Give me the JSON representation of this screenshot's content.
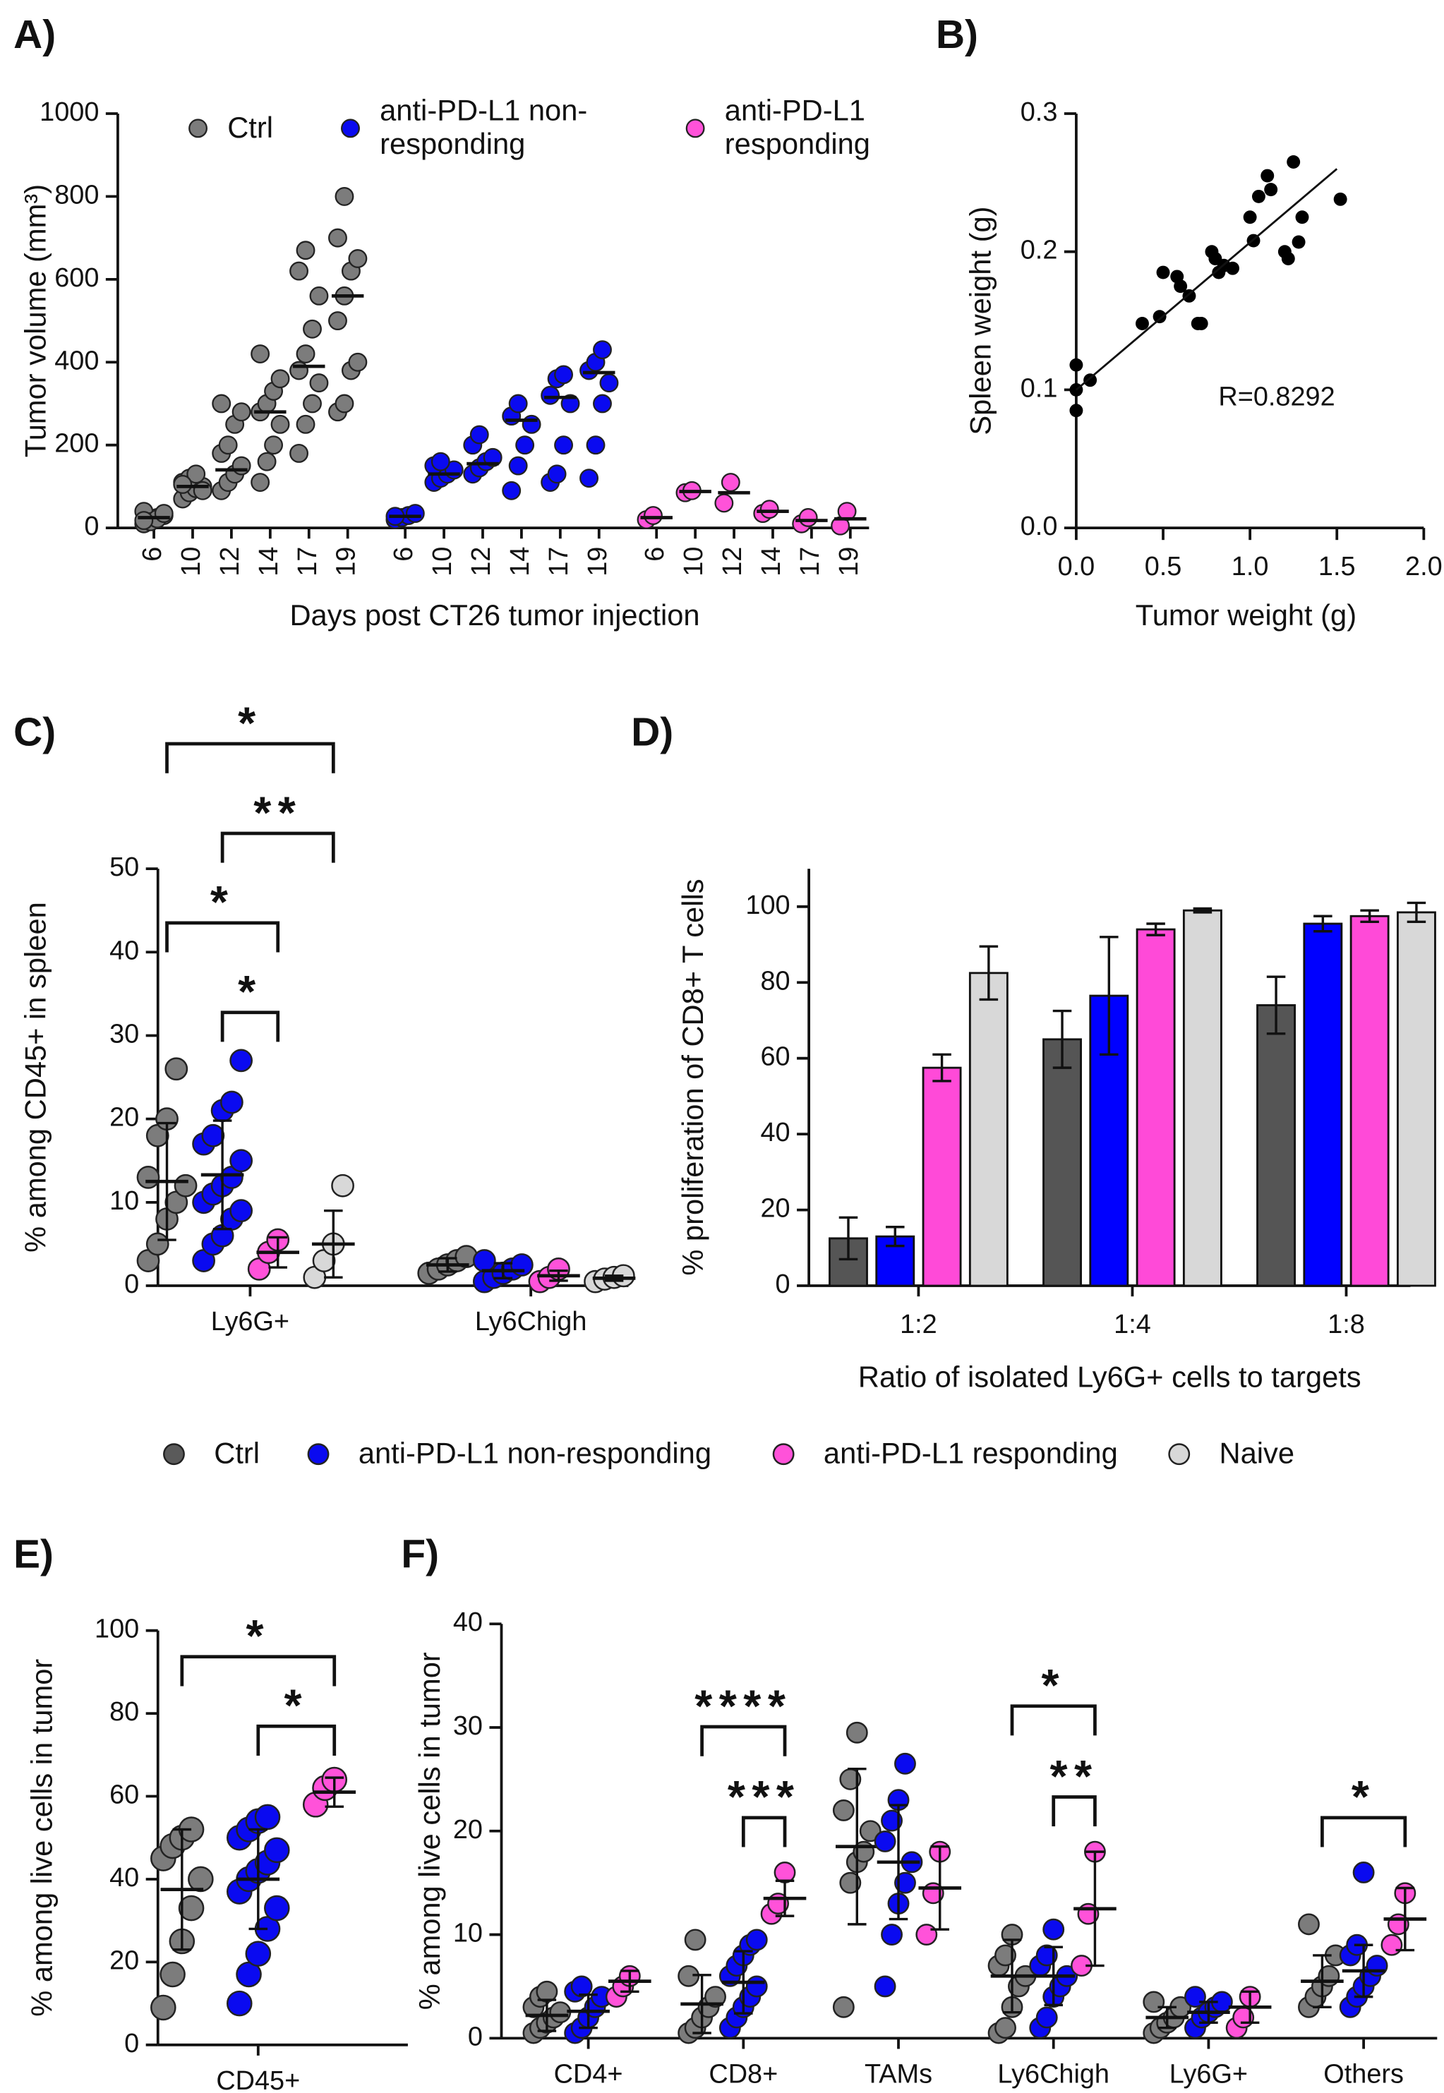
{
  "legend": [
    {
      "name": "Ctrl",
      "color": "#5a5a5a"
    },
    {
      "name": "anti-PD-L1 non-responding",
      "color": "#0a0af0"
    },
    {
      "name": "anti-PD-L1 responding",
      "color": "#ff52d9"
    },
    {
      "name": "Naive",
      "color": "#d8d8d8"
    }
  ],
  "chart_data": [
    {
      "type": "dot",
      "panel": "A)",
      "ylabel": "Tumor volume (mm³)",
      "xlabel": "Days post  CT26 tumor injection",
      "categories": [
        "6",
        "10",
        "12",
        "14",
        "17",
        "19"
      ],
      "ylim": [
        0,
        1000
      ],
      "yticks": [
        0,
        200,
        400,
        600,
        800,
        1000
      ],
      "series": [
        {
          "name": "Ctrl",
          "color": "#7c7c7c",
          "points": [
            [
              10,
              20,
              25,
              30,
              40,
              15,
              22,
              35,
              18
            ],
            [
              70,
              85,
              95,
              100,
              110,
              120,
              130,
              90,
              105
            ],
            [
              90,
              110,
              130,
              150,
              180,
              200,
              250,
              280,
              300
            ],
            [
              110,
              160,
              200,
              250,
              280,
              300,
              330,
              360,
              420
            ],
            [
              180,
              250,
              300,
              350,
              380,
              420,
              480,
              560,
              620,
              670
            ],
            [
              280,
              300,
              380,
              400,
              500,
              560,
              620,
              650,
              700,
              800
            ]
          ],
          "medians": [
            25,
            100,
            140,
            280,
            390,
            560
          ]
        },
        {
          "name": "anti-PD-L1 non-responding",
          "color": "#0a0af0",
          "points": [
            [
              20,
              25,
              30,
              35,
              28
            ],
            [
              110,
              120,
              130,
              140,
              150,
              160
            ],
            [
              130,
              145,
              160,
              170,
              200,
              225
            ],
            [
              90,
              150,
              200,
              250,
              270,
              300
            ],
            [
              110,
              130,
              200,
              300,
              320,
              360,
              370
            ],
            [
              120,
              200,
              300,
              350,
              380,
              400,
              430
            ]
          ],
          "medians": [
            28,
            130,
            155,
            260,
            315,
            375
          ]
        },
        {
          "name": "anti-PD-L1 responding",
          "color": "#ff52d9",
          "points": [
            [
              20,
              30
            ],
            [
              85,
              90
            ],
            [
              60,
              110
            ],
            [
              35,
              45
            ],
            [
              10,
              25
            ],
            [
              5,
              40
            ]
          ],
          "medians": [
            25,
            88,
            85,
            40,
            18,
            22
          ]
        }
      ]
    },
    {
      "type": "scatter",
      "panel": "B)",
      "xlabel": "Tumor weight (g)",
      "ylabel": "Spleen weight (g)",
      "annotation": "R=0.8292",
      "xlim": [
        0,
        2
      ],
      "xticks": [
        {
          "value": 0,
          "label": "0.0"
        },
        {
          "value": 0.5,
          "label": "0.5"
        },
        {
          "value": 1,
          "label": "1.0"
        },
        {
          "value": 1.5,
          "label": "1.5"
        },
        {
          "value": 2,
          "label": "2.0"
        }
      ],
      "ylim": [
        0,
        0.3
      ],
      "yticks": [
        {
          "value": 0,
          "label": "0.0"
        },
        0.1,
        0.2,
        0.3
      ],
      "color": "#000000",
      "x": [
        0,
        0,
        0,
        0.08,
        0.38,
        0.48,
        0.5,
        0.58,
        0.6,
        0.65,
        0.7,
        0.72,
        0.78,
        0.8,
        0.82,
        0.85,
        0.9,
        1.0,
        1.02,
        1.05,
        1.1,
        1.12,
        1.2,
        1.22,
        1.25,
        1.28,
        1.3,
        1.52
      ],
      "y": [
        0.085,
        0.1,
        0.118,
        0.107,
        0.148,
        0.153,
        0.185,
        0.182,
        0.175,
        0.168,
        0.148,
        0.148,
        0.2,
        0.195,
        0.185,
        0.19,
        0.188,
        0.225,
        0.208,
        0.24,
        0.255,
        0.245,
        0.2,
        0.195,
        0.265,
        0.207,
        0.225,
        0.238
      ],
      "trend": {
        "x": [
          0,
          1.5
        ],
        "y": [
          0.1,
          0.26
        ]
      }
    },
    {
      "type": "dotsd",
      "panel": "C)",
      "ylabel": "% among CD45+ in spleen",
      "categories": [
        "Ly6G+",
        "Ly6Chigh"
      ],
      "ylim": [
        0,
        50
      ],
      "yticks": [
        0,
        10,
        20,
        30,
        40,
        50
      ],
      "series": [
        {
          "color": "#7c7c7c",
          "points": [
            [
              3,
              5,
              8,
              10,
              12,
              13,
              18,
              20,
              26
            ],
            [
              1.5,
              2,
              2.5,
              3,
              3.5
            ]
          ],
          "means": [
            12.5,
            2.5
          ],
          "sd": [
            7,
            0.8
          ]
        },
        {
          "color": "#0a0af0",
          "points": [
            [
              3,
              5,
              6,
              8,
              9,
              10,
              11,
              12,
              13,
              15,
              17,
              18,
              21,
              22,
              27
            ],
            [
              0.5,
              1,
              1.5,
              2,
              2.5,
              3
            ]
          ],
          "means": [
            13.3,
            1.8
          ],
          "sd": [
            6.5,
            0.9
          ]
        },
        {
          "color": "#ff52d9",
          "points": [
            [
              2,
              4,
              5.5
            ],
            [
              0.5,
              1,
              2
            ]
          ],
          "means": [
            4,
            1.2
          ],
          "sd": [
            1.8,
            0.6
          ]
        },
        {
          "color": "#d8d8d8",
          "points": [
            [
              1,
              3,
              5,
              12
            ],
            [
              0.5,
              0.8,
              1,
              1.2
            ]
          ],
          "means": [
            5,
            0.9
          ],
          "sd": [
            4,
            0.3
          ]
        }
      ],
      "brackets": [
        {
          "category": 0,
          "groups": [
            1,
            2
          ],
          "label": "*"
        },
        {
          "category": 0,
          "groups": [
            0,
            2
          ],
          "label": "*"
        },
        {
          "category": 0,
          "groups": [
            1,
            3
          ],
          "label": "**"
        },
        {
          "category": 0,
          "groups": [
            0,
            3
          ],
          "label": "*"
        }
      ]
    },
    {
      "type": "bar",
      "panel": "D)",
      "ylabel": "% proliferation of CD8+  T cells",
      "xlabel": "Ratio of isolated Ly6G+ cells to targets",
      "categories": [
        "1:2",
        "1:4",
        "1:8"
      ],
      "ylim": [
        0,
        110
      ],
      "yticks": [
        0,
        20,
        40,
        60,
        80,
        100
      ],
      "series": [
        {
          "color": "#555555",
          "values": [
            12.5,
            65,
            74
          ],
          "errors": [
            5.5,
            7.5,
            7.5
          ]
        },
        {
          "color": "#0000ff",
          "values": [
            13,
            76.5,
            95.5
          ],
          "errors": [
            2.5,
            15.5,
            2
          ]
        },
        {
          "color": "#ff4ad8",
          "values": [
            57.5,
            94,
            97.5
          ],
          "errors": [
            3.5,
            1.5,
            1.5
          ]
        },
        {
          "color": "#d8d8d8",
          "values": [
            82.5,
            99,
            98.5
          ],
          "errors": [
            7,
            0.5,
            2.5
          ]
        }
      ]
    },
    {
      "type": "dotsd",
      "panel": "E)",
      "ylabel": "% among live cells in tumor",
      "categories": [
        "CD45+"
      ],
      "ylim": [
        0,
        100
      ],
      "yticks": [
        0,
        20,
        40,
        60,
        80,
        100
      ],
      "series": [
        {
          "color": "#7c7c7c",
          "points": [
            [
              9,
              17,
              25,
              33,
              40,
              45,
              48,
              50,
              52
            ]
          ],
          "means": [
            37.5
          ],
          "sd": [
            14.5
          ]
        },
        {
          "color": "#0a0af0",
          "points": [
            [
              10,
              17,
              22,
              28,
              33,
              37,
              40,
              42,
              44,
              47,
              50,
              52,
              54,
              55
            ]
          ],
          "means": [
            40
          ],
          "sd": [
            12
          ]
        },
        {
          "color": "#ff52d9",
          "points": [
            [
              58,
              62,
              64
            ]
          ],
          "means": [
            61
          ],
          "sd": [
            3.5
          ]
        }
      ],
      "brackets": [
        {
          "category": 0,
          "groups": [
            1,
            2
          ],
          "label": "*"
        },
        {
          "category": 0,
          "groups": [
            0,
            2
          ],
          "label": "*"
        }
      ]
    },
    {
      "type": "dotsd",
      "panel": "F)",
      "ylabel": "% among live cells in tumor",
      "categories": [
        "CD4+",
        "CD8+",
        "TAMs",
        "Ly6Chigh",
        "Ly6G+",
        "Others"
      ],
      "ylim": [
        0,
        40
      ],
      "yticks": [
        0,
        10,
        20,
        30,
        40
      ],
      "series": [
        {
          "color": "#7c7c7c",
          "points": [
            [
              0.5,
              1,
              1.5,
              2,
              2.5,
              3,
              4,
              4.5
            ],
            [
              0.5,
              1,
              2,
              3,
              4,
              6,
              9.5
            ],
            [
              3,
              15,
              17,
              18,
              20,
              22,
              25,
              29.5
            ],
            [
              0.5,
              1,
              3,
              5,
              6,
              7,
              8,
              10
            ],
            [
              0.5,
              1,
              1.5,
              2,
              3,
              3.5
            ],
            [
              3,
              4,
              5,
              6,
              8,
              11
            ]
          ],
          "means": [
            2.2,
            3.3,
            18.5,
            6,
            2,
            5.5
          ],
          "sd": [
            1.5,
            2.8,
            7.5,
            3.5,
            1,
            2.5
          ]
        },
        {
          "color": "#0a0af0",
          "points": [
            [
              0.5,
              1,
              2,
              3,
              4,
              4.5,
              5
            ],
            [
              1,
              2,
              3,
              4,
              5,
              6,
              7,
              8,
              9,
              9.5
            ],
            [
              5,
              10,
              13,
              15,
              17,
              19,
              21,
              23,
              26.5
            ],
            [
              1,
              2,
              4,
              5,
              6,
              7,
              8,
              10.5
            ],
            [
              1,
              2,
              2.5,
              3,
              3.5,
              4
            ],
            [
              3,
              4,
              5,
              6,
              7,
              8,
              9,
              16
            ]
          ],
          "means": [
            2.6,
            5.4,
            17,
            6,
            2.5,
            6.5
          ],
          "sd": [
            1.6,
            3,
            5.5,
            2.8,
            1,
            2.5
          ]
        },
        {
          "color": "#ff52d9",
          "points": [
            [
              4,
              5,
              6
            ],
            [
              12,
              13,
              16
            ],
            [
              10,
              14,
              18
            ],
            [
              7,
              12,
              18
            ],
            [
              1,
              2,
              4
            ],
            [
              9,
              11,
              14
            ]
          ],
          "means": [
            5.5,
            13.5,
            14.5,
            12.5,
            3,
            11.5
          ],
          "sd": [
            1,
            1.7,
            4,
            5.5,
            1.5,
            3
          ]
        }
      ],
      "brackets": [
        {
          "category": 1,
          "groups": [
            1,
            2
          ],
          "label": "***"
        },
        {
          "category": 1,
          "groups": [
            0,
            2
          ],
          "label": "****"
        },
        {
          "category": 3,
          "groups": [
            1,
            2
          ],
          "label": "**"
        },
        {
          "category": 3,
          "groups": [
            0,
            2
          ],
          "label": "*"
        },
        {
          "category": 5,
          "groups": [
            0,
            2
          ],
          "label": "*"
        }
      ]
    }
  ]
}
